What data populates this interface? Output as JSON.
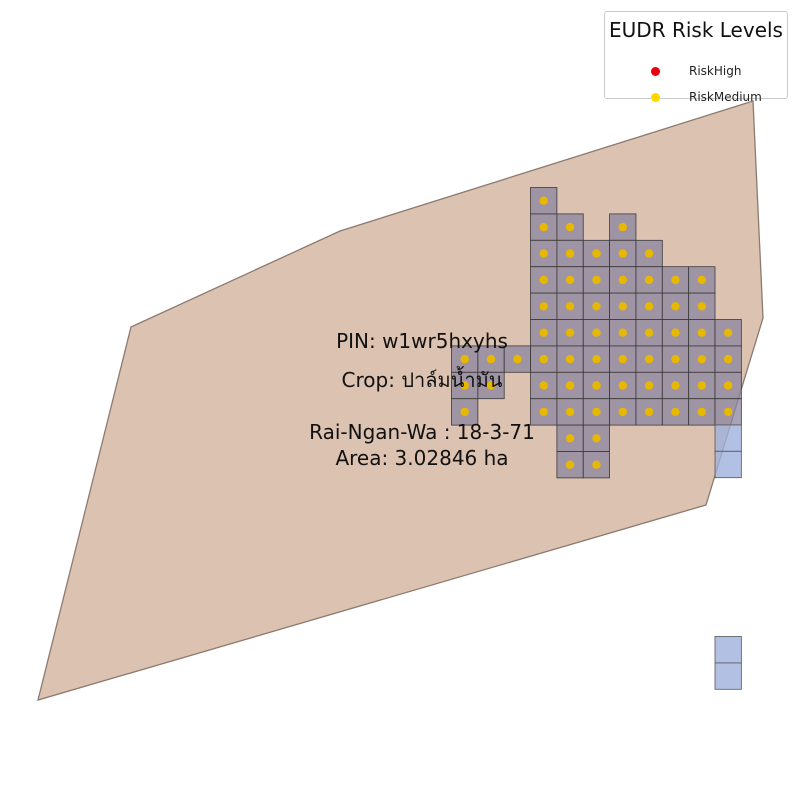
{
  "legend": {
    "title": "EUDR Risk Levels",
    "items": [
      {
        "label": "RiskHigh",
        "color": "#e8000b"
      },
      {
        "label": "RiskMedium",
        "color": "#ffd700"
      }
    ]
  },
  "parcel": {
    "pin_text": "PIN: w1wr5hxyhs",
    "crop_text": "Crop: ปาล์มน้ำมัน",
    "rai_ngan_wa_text": "Rai-Ngan-Wa : 18-3-71",
    "area_text": "Area: 3.02846 ha",
    "fill_color": "#c49a7c",
    "edge_color": "#8c7a70"
  },
  "grid_cells": {
    "fill_color": "#8b84a0",
    "edge_color": "#3a3a3a",
    "low_risk_fill_color": "#9fb0dc",
    "low_risk_edge_color": "#555555",
    "medium_marker_color": "#e8b800"
  }
}
